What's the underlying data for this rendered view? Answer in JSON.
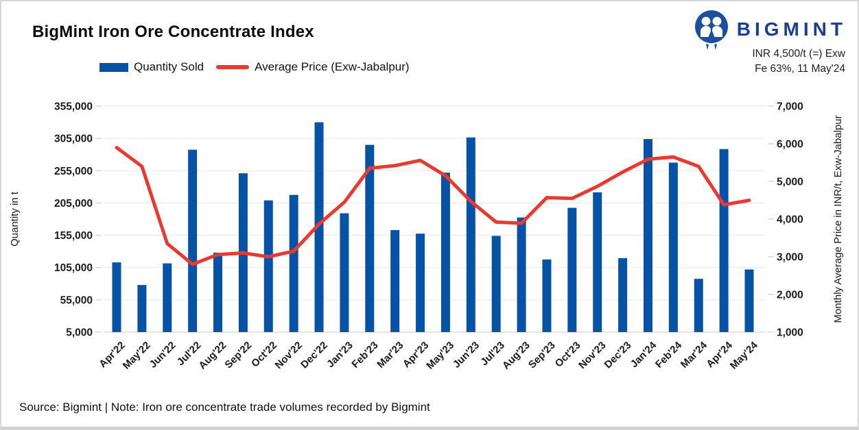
{
  "header": {
    "title": "BigMint Iron Ore Concentrate Index",
    "brand": "BIGMINT",
    "price_note_line1": "INR 4,500/t (=) Exw",
    "price_note_line2": "Fe 63%, 11 May'24"
  },
  "legend": {
    "items": [
      {
        "label": "Quantity Sold",
        "swatch": "bar",
        "color": "#0652a5"
      },
      {
        "label": "Average Price (Exw-Jabalpur)",
        "swatch": "line",
        "color": "#e93a32"
      }
    ]
  },
  "footer": {
    "source_note": "Source: Bigmint | Note: Iron ore concentrate trade volumes recorded by Bigmint"
  },
  "colors": {
    "bar_blue": "#0652a5",
    "line_red": "#e93a32",
    "brand_navy": "#1b3e91",
    "grid": "#ebebec",
    "axis_line": "#d8d8d8",
    "axis_text": "#1a1a1a"
  },
  "chart_data": {
    "type": "bar+line",
    "title": "BigMint Iron Ore Concentrate Index",
    "categories": [
      "Apr'22",
      "May'22",
      "Jun'22",
      "Jul'22",
      "Aug'22",
      "Sep'22",
      "Oct'22",
      "Nov'22",
      "Dec'22",
      "Jan'23",
      "Feb'23",
      "Mar'23",
      "Apr'23",
      "May'23",
      "Jun'23",
      "Jul'23",
      "Aug'23",
      "Sep'23",
      "Oct'23",
      "Nov'23",
      "Dec'23",
      "Jan'24",
      "Feb'24",
      "Mar'24",
      "Apr'24",
      "May'24"
    ],
    "series": [
      {
        "name": "Quantity Sold",
        "type": "bar",
        "axis": "left",
        "color": "#0652a5",
        "values": [
          113000,
          78000,
          111500,
          287500,
          128000,
          251000,
          209000,
          217500,
          330000,
          189000,
          295000,
          163000,
          157500,
          252000,
          306500,
          154000,
          182500,
          117500,
          197500,
          221500,
          119500,
          304000,
          267500,
          87500,
          288500,
          102000
        ]
      },
      {
        "name": "Average Price (Exw-Jabalpur)",
        "type": "line",
        "axis": "right",
        "color": "#e93a32",
        "values": [
          5900,
          5400,
          3350,
          2800,
          3060,
          3100,
          3000,
          3150,
          3870,
          4450,
          5350,
          5420,
          5560,
          5150,
          4470,
          3920,
          3890,
          4570,
          4550,
          4870,
          5250,
          5590,
          5650,
          5400,
          4380,
          4500
        ]
      }
    ],
    "left_axis": {
      "title": "Quantity in t",
      "min": 5000,
      "max": 355000,
      "tick_step": 50000
    },
    "right_axis": {
      "title": "Monthly Average Price in INR/t, Exw-Jabalpur",
      "min": 1000,
      "max": 7000,
      "tick_step": 1000
    },
    "grid": true,
    "legend_position": "top-left",
    "x_label_rotation": -45
  }
}
